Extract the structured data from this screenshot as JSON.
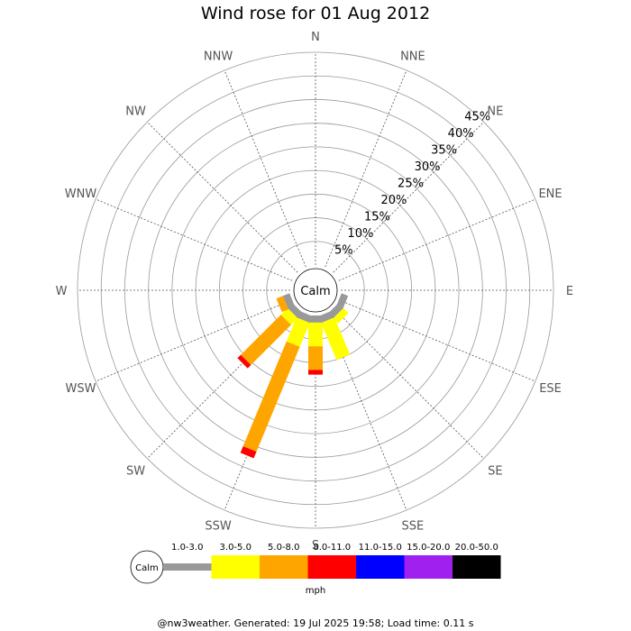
{
  "chart_data": {
    "type": "wind-rose",
    "title": "Wind rose for 01 Aug 2012",
    "directions": [
      "N",
      "NNE",
      "NE",
      "ENE",
      "E",
      "ESE",
      "SE",
      "SSE",
      "S",
      "SSW",
      "SW",
      "WSW",
      "W",
      "WNW",
      "NW",
      "NNW"
    ],
    "radial_ticks": [
      "5%",
      "10%",
      "15%",
      "20%",
      "25%",
      "30%",
      "35%",
      "40%",
      "45%"
    ],
    "radial_max": 45,
    "calm_label": "Calm",
    "speed_bins": [
      {
        "label": "1.0-3.0",
        "color": "#999999"
      },
      {
        "label": "3.0-5.0",
        "color": "#ffff00"
      },
      {
        "label": "5.0-8.0",
        "color": "#ffa500"
      },
      {
        "label": "8.0-11.0",
        "color": "#ff0000"
      },
      {
        "label": "11.0-15.0",
        "color": "#0000ff"
      },
      {
        "label": "15.0-20.0",
        "color": "#a020f0"
      },
      {
        "label": "20.0-50.0",
        "color": "#000000"
      }
    ],
    "unit": "mph",
    "series": [
      {
        "direction": "ESE",
        "cumulative": [
          1.5,
          1.5,
          1.5,
          1.5,
          1.5,
          1.5,
          1.5
        ]
      },
      {
        "direction": "SE",
        "cumulative": [
          1.5,
          3.0,
          3.0,
          3.0,
          3.0,
          3.0,
          3.0
        ]
      },
      {
        "direction": "SSE",
        "cumulative": [
          1.5,
          10.0,
          10.0,
          10.0,
          10.0,
          10.0,
          10.0
        ]
      },
      {
        "direction": "S",
        "cumulative": [
          1.5,
          6.5,
          11.5,
          12.5,
          12.5,
          12.5,
          12.5
        ]
      },
      {
        "direction": "SSW",
        "cumulative": [
          1.5,
          7.0,
          31.0,
          32.5,
          32.5,
          32.5,
          32.5
        ]
      },
      {
        "direction": "SW",
        "cumulative": [
          1.5,
          3.5,
          15.5,
          16.5,
          16.5,
          16.5,
          16.5
        ]
      },
      {
        "direction": "WSW",
        "cumulative": [
          1.5,
          1.5,
          3.0,
          3.0,
          3.0,
          3.0,
          3.0
        ]
      }
    ]
  },
  "footer": "@nw3weather. Generated: 19 Jul 2025 19:58; Load time: 0.11 s"
}
